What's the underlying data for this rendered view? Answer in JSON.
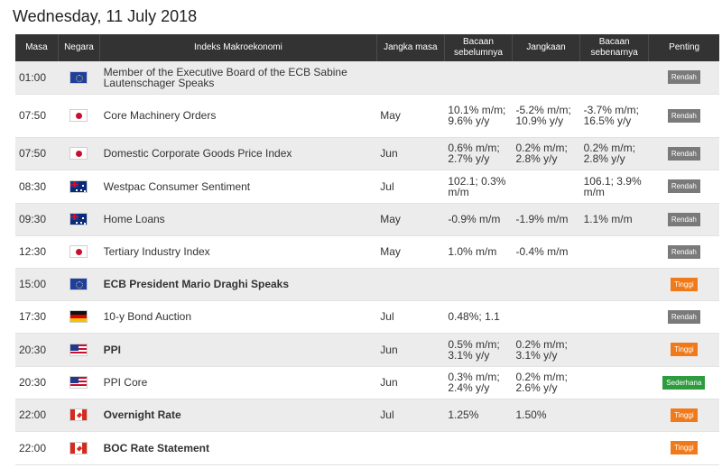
{
  "page": {
    "title": "Wednesday, 11 July 2018"
  },
  "headers": {
    "time": "Masa",
    "country": "Negara",
    "event": "Indeks Makroekonomi",
    "period": "Jangka masa",
    "previous": "Bacaan sebelumnya",
    "forecast": "Jangkaan",
    "actual": "Bacaan sebenarnya",
    "importance": "Penting"
  },
  "rows": [
    {
      "time": "01:00",
      "flag": "eu-flag-icon",
      "event": "Member of the Executive Board of the ECB Sabine Lautenschager Speaks",
      "bold": false,
      "period": "",
      "previous": "",
      "forecast": "",
      "actual": "",
      "importance": "Rendah",
      "level": "low"
    },
    {
      "time": "07:50",
      "flag": "japan-flag-icon",
      "event": "Core Machinery Orders",
      "bold": false,
      "period": "May",
      "previous": "10.1% m/m; 9.6% y/y",
      "forecast": "-5.2% m/m; 10.9% y/y",
      "actual": "-3.7% m/m; 16.5% y/y",
      "importance": "Rendah",
      "level": "low"
    },
    {
      "time": "07:50",
      "flag": "japan-flag-icon",
      "event": "Domestic Corporate Goods Price Index",
      "bold": false,
      "period": "Jun",
      "previous": "0.6% m/m; 2.7% y/y",
      "forecast": "0.2% m/m; 2.8% y/y",
      "actual": "0.2% m/m; 2.8% y/y",
      "importance": "Rendah",
      "level": "low"
    },
    {
      "time": "08:30",
      "flag": "australia-flag-icon",
      "event": "Westpac Consumer Sentiment",
      "bold": false,
      "period": "Jul",
      "previous": "102.1; 0.3% m/m",
      "forecast": "",
      "actual": "106.1; 3.9% m/m",
      "importance": "Rendah",
      "level": "low"
    },
    {
      "time": "09:30",
      "flag": "australia-flag-icon",
      "event": "Home Loans",
      "bold": false,
      "period": "May",
      "previous": "-0.9% m/m",
      "forecast": "-1.9% m/m",
      "actual": "1.1% m/m",
      "importance": "Rendah",
      "level": "low"
    },
    {
      "time": "12:30",
      "flag": "japan-flag-icon",
      "event": "Tertiary Industry Index",
      "bold": false,
      "period": "May",
      "previous": "1.0% m/m",
      "forecast": "-0.4% m/m",
      "actual": "",
      "importance": "Rendah",
      "level": "low"
    },
    {
      "time": "15:00",
      "flag": "eu-flag-icon",
      "event": "ECB President Mario Draghi Speaks",
      "bold": true,
      "period": "",
      "previous": "",
      "forecast": "",
      "actual": "",
      "importance": "Tinggi",
      "level": "high"
    },
    {
      "time": "17:30",
      "flag": "germany-flag-icon",
      "event": "10-y Bond Auction",
      "bold": false,
      "period": "Jul",
      "previous": "0.48%; 1.1",
      "forecast": "",
      "actual": "",
      "importance": "Rendah",
      "level": "low"
    },
    {
      "time": "20:30",
      "flag": "usa-flag-icon",
      "event": "PPI",
      "bold": true,
      "period": "Jun",
      "previous": "0.5% m/m; 3.1% y/y",
      "forecast": "0.2% m/m; 3.1% y/y",
      "actual": "",
      "importance": "Tinggi",
      "level": "high"
    },
    {
      "time": "20:30",
      "flag": "usa-flag-icon",
      "event": "PPI Core",
      "bold": false,
      "period": "Jun",
      "previous": "0.3% m/m; 2.4% y/y",
      "forecast": "0.2% m/m; 2.6% y/y",
      "actual": "",
      "importance": "Sederhana",
      "level": "med"
    },
    {
      "time": "22:00",
      "flag": "canada-flag-icon",
      "event": "Overnight Rate",
      "bold": true,
      "period": "Jul",
      "previous": "1.25%",
      "forecast": "1.50%",
      "actual": "",
      "importance": "Tinggi",
      "level": "high"
    },
    {
      "time": "22:00",
      "flag": "canada-flag-icon",
      "event": "BOC Rate Statement",
      "bold": true,
      "period": "",
      "previous": "",
      "forecast": "",
      "actual": "",
      "importance": "Tinggi",
      "level": "high"
    }
  ],
  "colors": {
    "header_bg": "#333333",
    "row_alt": "#ececec",
    "positive": "#2e9c2e",
    "badge_low": "#7a7a7a",
    "badge_high": "#f07a1a",
    "badge_med": "#2e9c3e"
  }
}
